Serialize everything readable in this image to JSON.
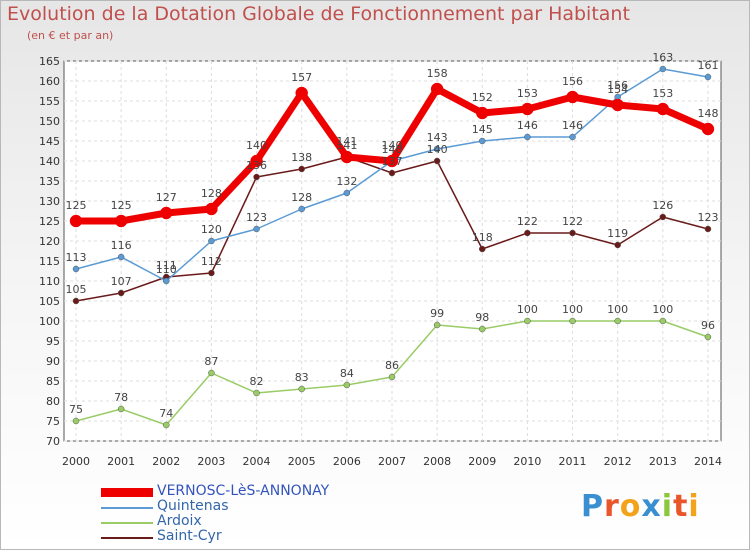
{
  "chart_data": {
    "type": "line",
    "title": "Evolution de la Dotation Globale de Fonctionnement par Habitant",
    "subtitle": "(en € et par an)",
    "xlabel": "",
    "ylabel": "",
    "categories": [
      "2000",
      "2001",
      "2002",
      "2003",
      "2004",
      "2005",
      "2006",
      "2007",
      "2008",
      "2009",
      "2010",
      "2011",
      "2012",
      "2013",
      "2014"
    ],
    "ylim": [
      70,
      165
    ],
    "yticks": [
      70,
      75,
      80,
      85,
      90,
      95,
      100,
      105,
      110,
      115,
      120,
      125,
      130,
      135,
      140,
      145,
      150,
      155,
      160,
      165
    ],
    "grid": true,
    "legend_position": "bottom-left",
    "series": [
      {
        "name": "Saint-Cyr",
        "color": "#6b1a1a",
        "values": [
          105,
          107,
          111,
          112,
          136,
          138,
          141,
          137,
          140,
          118,
          122,
          122,
          119,
          126,
          123
        ]
      },
      {
        "name": "Ardoix",
        "color": "#99cc66",
        "values": [
          75,
          78,
          74,
          87,
          82,
          83,
          84,
          86,
          99,
          98,
          100,
          100,
          100,
          100,
          96
        ]
      },
      {
        "name": "Quintenas",
        "color": "#5b9bd5",
        "values": [
          113,
          116,
          110,
          120,
          123,
          128,
          132,
          140,
          143,
          145,
          146,
          146,
          156,
          163,
          161
        ]
      },
      {
        "name": "VERNOSC-LèS-ANNONAY",
        "color": "#ee0000",
        "values": [
          125,
          125,
          127,
          128,
          140,
          157,
          141,
          140,
          158,
          152,
          153,
          156,
          154,
          153,
          148
        ]
      }
    ]
  },
  "legend": {
    "items": [
      {
        "label": "VERNOSC-LèS-ANNONAY",
        "color": "#ee0000",
        "thick": true
      },
      {
        "label": "Quintenas",
        "color": "#5b9bd5",
        "thick": false
      },
      {
        "label": "Ardoix",
        "color": "#99cc66",
        "thick": false
      },
      {
        "label": "Saint-Cyr",
        "color": "#6b1a1a",
        "thick": false
      }
    ]
  },
  "brand": {
    "letters": [
      "P",
      "r",
      "o",
      "x",
      "i",
      "t",
      "i"
    ],
    "colors": [
      "#3a8fd0",
      "#e8562a",
      "#f2a31b",
      "#3a8fd0",
      "#8cc63f",
      "#e8562a",
      "#f2a31b"
    ]
  }
}
